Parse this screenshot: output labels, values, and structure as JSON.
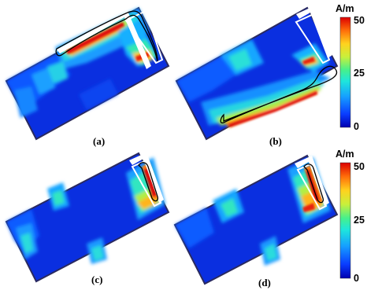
{
  "panels": [
    {
      "label": "(a)"
    },
    {
      "label": "(b)"
    },
    {
      "label": "(c)"
    },
    {
      "label": "(d)"
    }
  ],
  "colorbars": [
    {
      "unit": "A/m",
      "ticks": [
        "50",
        "25",
        "0"
      ]
    },
    {
      "unit": "A/m",
      "ticks": [
        "50",
        "25",
        "0"
      ]
    }
  ],
  "colormap": [
    "#0000b0",
    "#0a3cff",
    "#16a0ff",
    "#1ee6dc",
    "#46f08c",
    "#c8f03c",
    "#ffd21e",
    "#ff6e0a",
    "#dc0000"
  ]
}
